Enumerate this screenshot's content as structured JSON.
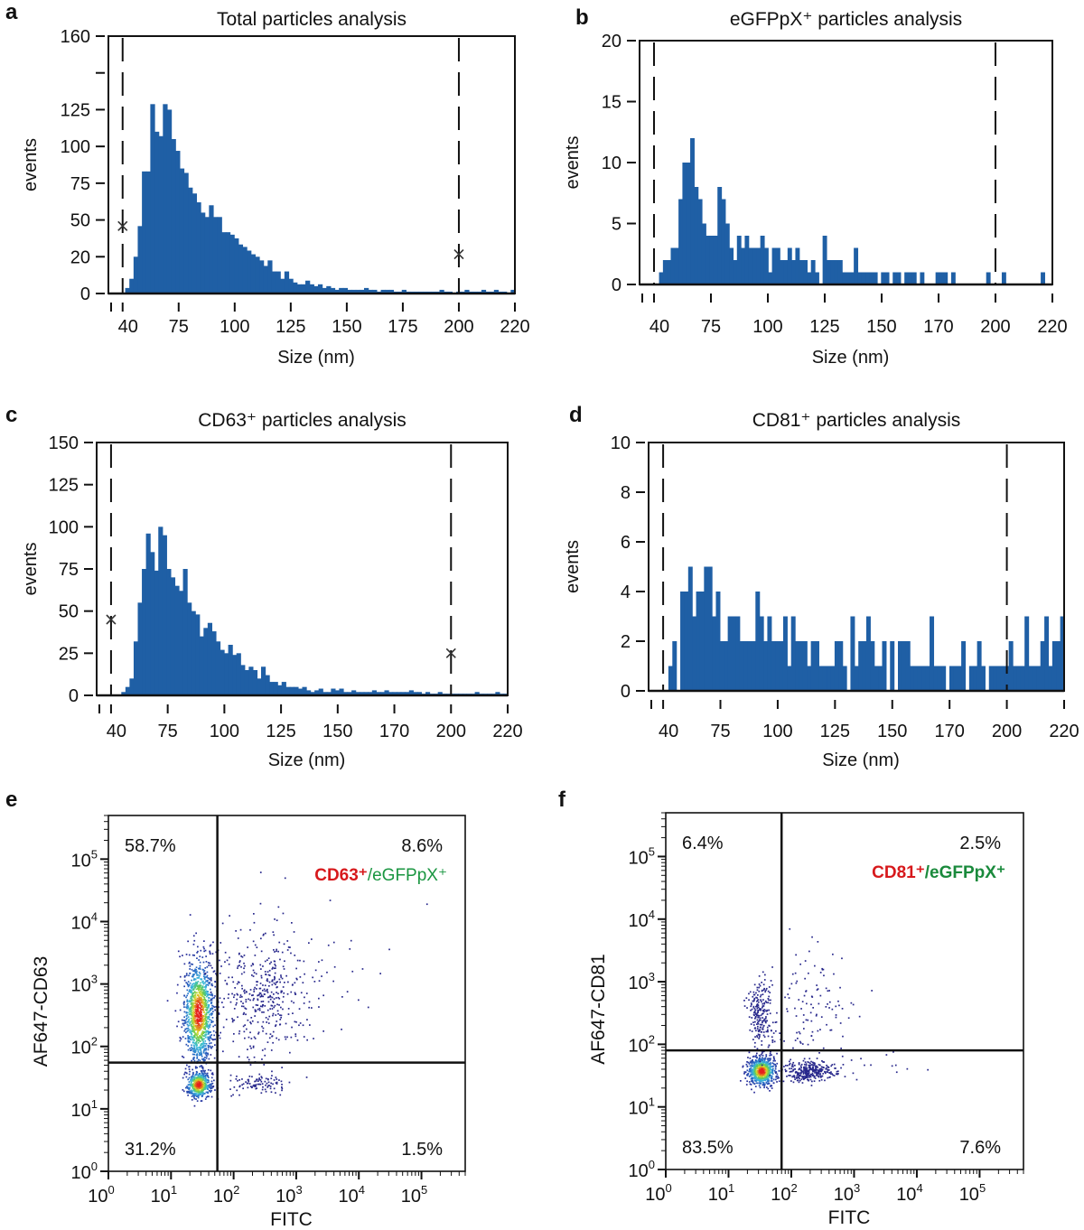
{
  "figure": {
    "panels": [
      "a",
      "b",
      "c",
      "d",
      "e",
      "f"
    ]
  },
  "chart_data": [
    {
      "id": "a",
      "type": "bar",
      "title": "Total particles analysis",
      "xlabel": "Size (nm)",
      "ylabel": "events",
      "x_tick_labels": [
        "40",
        "75",
        "100",
        "125",
        "150",
        "175",
        "200",
        "220"
      ],
      "y_ticks": [
        {
          "label": "0",
          "value": 0
        },
        {
          "label": "20",
          "value": 20
        },
        {
          "label": "50",
          "value": 50
        },
        {
          "label": "75",
          "value": 75
        },
        {
          "label": "100",
          "value": 100
        },
        {
          "label": "125",
          "value": 125
        },
        {
          "label": "",
          "value": 145
        },
        {
          "label": "160",
          "value": 160
        }
      ],
      "y_scale_note": "non-linear axis labels: 0,20,50,75,100,125,160",
      "ylim": [
        0,
        160
      ],
      "gates": [
        {
          "x": "40",
          "marker_value": 45
        },
        {
          "x": "200",
          "marker_value": 22
        }
      ],
      "bins": [
        0,
        0,
        0,
        0,
        3,
        8,
        20,
        45,
        83,
        83,
        128,
        110,
        107,
        128,
        125,
        105,
        97,
        85,
        82,
        72,
        68,
        62,
        55,
        52,
        60,
        52,
        52,
        40,
        40,
        38,
        35,
        30,
        28,
        25,
        22,
        20,
        18,
        15,
        18,
        12,
        12,
        8,
        12,
        8,
        6,
        5,
        5,
        7,
        5,
        4,
        5,
        3,
        4,
        3,
        2,
        3,
        3,
        2,
        2,
        2,
        2,
        3,
        2,
        2,
        1,
        2,
        2,
        2,
        1,
        1,
        2,
        1,
        1,
        1,
        1,
        1,
        1,
        1,
        1,
        2,
        1,
        1,
        0,
        1,
        1,
        2,
        1,
        1,
        1,
        2,
        1,
        1,
        2,
        1,
        1,
        0,
        2
      ],
      "bar_color": "#1f5fa5"
    },
    {
      "id": "b",
      "type": "bar",
      "title": "eGFPpX⁺ particles analysis",
      "xlabel": "Size (nm)",
      "ylabel": "events",
      "x_tick_labels": [
        "40",
        "75",
        "100",
        "125",
        "150",
        "170",
        "200",
        "220"
      ],
      "y_ticks": [
        {
          "label": "0",
          "value": 0
        },
        {
          "label": "5",
          "value": 5
        },
        {
          "label": "10",
          "value": 10
        },
        {
          "label": "15",
          "value": 15
        },
        {
          "label": "20",
          "value": 20
        }
      ],
      "ylim": [
        0,
        20
      ],
      "gates": [
        {
          "x": "40",
          "marker_value": null
        },
        {
          "x": "200",
          "marker_value": null
        }
      ],
      "bins": [
        0,
        0,
        0,
        0,
        0,
        1,
        2,
        2,
        3,
        3,
        7,
        10,
        10,
        12,
        8,
        7,
        5,
        4,
        4,
        4,
        8,
        7,
        5,
        3,
        2,
        4,
        3,
        4,
        3,
        3,
        3,
        4,
        3,
        1,
        3,
        3,
        2,
        2,
        3,
        2,
        3,
        2,
        2,
        1,
        2,
        1,
        0,
        4,
        2,
        2,
        2,
        2,
        1,
        1,
        1,
        3,
        1,
        1,
        1,
        1,
        1,
        0,
        1,
        1,
        0,
        1,
        1,
        0,
        1,
        1,
        1,
        0,
        1,
        0,
        0,
        0,
        1,
        1,
        1,
        0,
        1,
        0,
        0,
        0,
        0,
        0,
        0,
        0,
        0,
        1,
        0,
        0,
        0,
        1,
        0,
        0,
        0,
        0,
        0,
        0,
        0,
        0,
        0,
        1,
        0,
        0
      ],
      "bar_color": "#1f5fa5"
    },
    {
      "id": "c",
      "type": "bar",
      "title": "CD63⁺ particles analysis",
      "xlabel": "Size (nm)",
      "ylabel": "events",
      "x_tick_labels": [
        "40",
        "75",
        "100",
        "125",
        "150",
        "170",
        "200",
        "220"
      ],
      "y_ticks": [
        {
          "label": "0",
          "value": 0
        },
        {
          "label": "25",
          "value": 25
        },
        {
          "label": "50",
          "value": 50
        },
        {
          "label": "75",
          "value": 75
        },
        {
          "label": "100",
          "value": 100
        },
        {
          "label": "125",
          "value": 125
        },
        {
          "label": "150",
          "value": 150
        }
      ],
      "ylim": [
        0,
        150
      ],
      "gates": [
        {
          "x": "40",
          "marker_value": 45
        },
        {
          "x": "200",
          "marker_value": 25
        }
      ],
      "bins": [
        0,
        0,
        0,
        0,
        0,
        0,
        2,
        5,
        10,
        32,
        55,
        75,
        96,
        85,
        74,
        100,
        95,
        75,
        70,
        65,
        62,
        75,
        55,
        50,
        48,
        35,
        40,
        43,
        38,
        32,
        27,
        25,
        30,
        24,
        25,
        18,
        15,
        17,
        15,
        10,
        17,
        12,
        8,
        8,
        6,
        8,
        5,
        5,
        5,
        4,
        5,
        3,
        2,
        3,
        4,
        2,
        2,
        4,
        3,
        4,
        2,
        2,
        3,
        2,
        2,
        2,
        2,
        3,
        2,
        2,
        3,
        2,
        2,
        2,
        2,
        2,
        3,
        2,
        2,
        1,
        2,
        1,
        1,
        2,
        1,
        1,
        1,
        1,
        1,
        1,
        1,
        1,
        2,
        1,
        1,
        1,
        1,
        2,
        1,
        1
      ],
      "bar_color": "#1f5fa5"
    },
    {
      "id": "d",
      "type": "bar",
      "title": "CD81⁺ particles analysis",
      "xlabel": "Size (nm)",
      "ylabel": "events",
      "x_tick_labels": [
        "40",
        "75",
        "100",
        "125",
        "150",
        "170",
        "200",
        "220"
      ],
      "y_ticks": [
        {
          "label": "0",
          "value": 0
        },
        {
          "label": "2",
          "value": 2
        },
        {
          "label": "4",
          "value": 4
        },
        {
          "label": "6",
          "value": 6
        },
        {
          "label": "8",
          "value": 8
        },
        {
          "label": "10",
          "value": 10
        }
      ],
      "ylim": [
        0,
        10
      ],
      "gates": [
        {
          "x": "40",
          "marker_value": null
        },
        {
          "x": "200",
          "marker_value": null
        }
      ],
      "bins": [
        0,
        0,
        0,
        0,
        0,
        1,
        2,
        0,
        4,
        4,
        5,
        3,
        4,
        4,
        5,
        5,
        3,
        4,
        2,
        2,
        3,
        3,
        3,
        2,
        2,
        2,
        2,
        4,
        3,
        2,
        3,
        2,
        2,
        2,
        3,
        1,
        3,
        2,
        2,
        2,
        1,
        2,
        2,
        1,
        1,
        1,
        1,
        2,
        2,
        1,
        0,
        3,
        1,
        2,
        2,
        3,
        2,
        1,
        1,
        2,
        0,
        2,
        0,
        2,
        2,
        2,
        1,
        1,
        1,
        1,
        1,
        3,
        1,
        1,
        1,
        0,
        1,
        1,
        1,
        2,
        0,
        1,
        1,
        2,
        1,
        0,
        1,
        1,
        1,
        1,
        1,
        2,
        1,
        1,
        1,
        3,
        1,
        1,
        1,
        2,
        3,
        1,
        2,
        2,
        3
      ],
      "bar_color": "#1f5fa5"
    },
    {
      "id": "e",
      "type": "scatter",
      "title": "",
      "xlabel": "FITC",
      "ylabel": "AF647-CD63",
      "x_scale": "log",
      "y_scale": "log",
      "xlim": [
        1,
        500000
      ],
      "ylim": [
        1,
        500000
      ],
      "x_tick_labels": [
        {
          "base": "10",
          "exp": "0"
        },
        {
          "base": "10",
          "exp": "1"
        },
        {
          "base": "10",
          "exp": "2"
        },
        {
          "base": "10",
          "exp": "3"
        },
        {
          "base": "10",
          "exp": "4"
        },
        {
          "base": "10",
          "exp": "5"
        }
      ],
      "y_tick_labels": [
        {
          "base": "10",
          "exp": "0"
        },
        {
          "base": "10",
          "exp": "1"
        },
        {
          "base": "10",
          "exp": "2"
        },
        {
          "base": "10",
          "exp": "3"
        },
        {
          "base": "10",
          "exp": "4"
        },
        {
          "base": "10",
          "exp": "5"
        }
      ],
      "gate": {
        "x": 55,
        "y": 55
      },
      "quadrants": {
        "upper_left": "58.7%",
        "upper_right": "8.6%",
        "lower_left": "31.2%",
        "lower_right": "1.5%"
      },
      "population_label": {
        "part1": "CD63⁺",
        "part2": "/eGFPpX⁺",
        "part1_color": "#d7191c",
        "part2_color": "#1a9641",
        "part2_bold": false
      },
      "clusters": [
        {
          "cx": 27,
          "cy": 350,
          "sx": 0.12,
          "sy": 0.42,
          "n": 1200,
          "dense": true,
          "seed": 11
        },
        {
          "cx": 27,
          "cy": 25,
          "sx": 0.1,
          "sy": 0.11,
          "n": 500,
          "dense": true,
          "seed": 12
        },
        {
          "cx": 300,
          "cy": 700,
          "sx": 0.38,
          "sy": 0.55,
          "n": 420,
          "dense": false,
          "seed": 13
        },
        {
          "cx": 230,
          "cy": 25,
          "sx": 0.25,
          "sy": 0.08,
          "n": 90,
          "dense": false,
          "seed": 14
        },
        {
          "cx": 3000,
          "cy": 1500,
          "sx": 0.55,
          "sy": 0.6,
          "n": 30,
          "dense": false,
          "seed": 15
        }
      ]
    },
    {
      "id": "f",
      "type": "scatter",
      "title": "",
      "xlabel": "FITC",
      "ylabel": "AF647-CD81",
      "x_scale": "log",
      "y_scale": "log",
      "xlim": [
        1,
        500000
      ],
      "ylim": [
        1,
        500000
      ],
      "x_tick_labels": [
        {
          "base": "10",
          "exp": "0"
        },
        {
          "base": "10",
          "exp": "1"
        },
        {
          "base": "10",
          "exp": "2"
        },
        {
          "base": "10",
          "exp": "3"
        },
        {
          "base": "10",
          "exp": "4"
        },
        {
          "base": "10",
          "exp": "5"
        }
      ],
      "y_tick_labels": [
        {
          "base": "10",
          "exp": "0"
        },
        {
          "base": "10",
          "exp": "1"
        },
        {
          "base": "10",
          "exp": "2"
        },
        {
          "base": "10",
          "exp": "3"
        },
        {
          "base": "10",
          "exp": "4"
        },
        {
          "base": "10",
          "exp": "5"
        }
      ],
      "gate": {
        "x": 70,
        "y": 80
      },
      "quadrants": {
        "upper_left": "6.4%",
        "upper_right": "2.5%",
        "lower_left": "83.5%",
        "lower_right": "7.6%"
      },
      "population_label": {
        "part1": "CD81⁺",
        "part2": "/eGFPpX⁺",
        "part1_color": "#d7191c",
        "part2_color": "#1a8a3c",
        "part2_bold": true
      },
      "clusters": [
        {
          "cx": 33,
          "cy": 38,
          "sx": 0.11,
          "sy": 0.11,
          "n": 700,
          "dense": true,
          "seed": 21
        },
        {
          "cx": 32,
          "cy": 280,
          "sx": 0.1,
          "sy": 0.32,
          "n": 230,
          "dense": false,
          "seed": 22
        },
        {
          "cx": 200,
          "cy": 38,
          "sx": 0.2,
          "sy": 0.08,
          "n": 300,
          "dense": false,
          "seed": 23
        },
        {
          "cx": 250,
          "cy": 400,
          "sx": 0.32,
          "sy": 0.45,
          "n": 110,
          "dense": false,
          "seed": 24
        },
        {
          "cx": 2500,
          "cy": 45,
          "sx": 0.4,
          "sy": 0.1,
          "n": 15,
          "dense": false,
          "seed": 25
        }
      ]
    }
  ]
}
